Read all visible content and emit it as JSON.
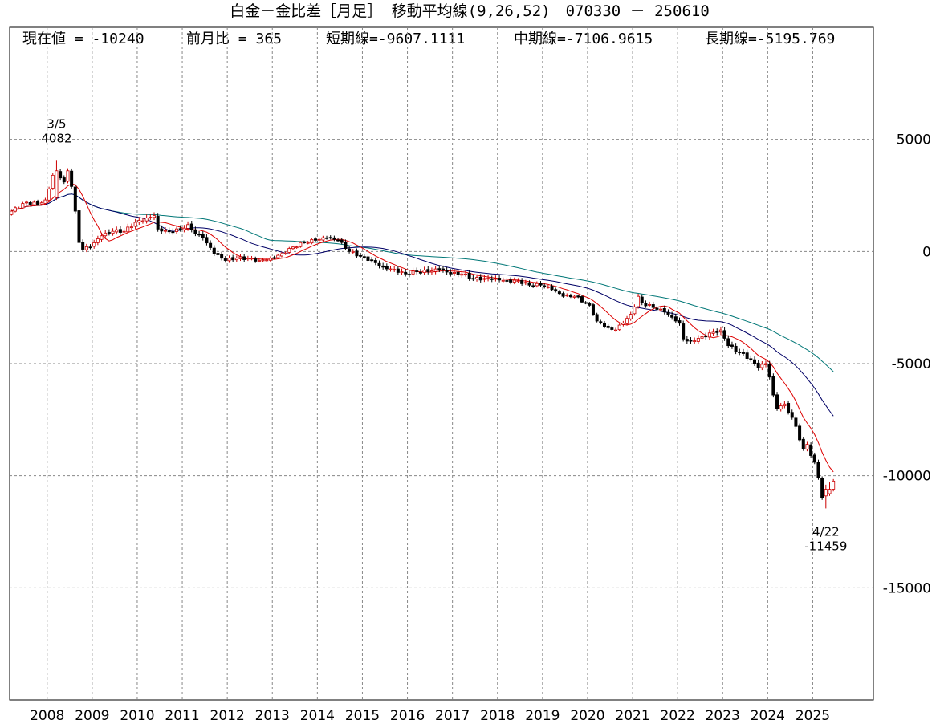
{
  "header": {
    "title": "白金－金比差［月足］ 移動平均線(9,26,52)　070330 － 250610",
    "current_value": "現在値 = -10240",
    "prev_month_change": "前月比 = 365",
    "short_ma": "短期線=-9607.1111",
    "mid_ma": "中期線=-7106.9615",
    "long_ma": "長期線=-5195.769"
  },
  "chart_data": {
    "type": "candlestick",
    "ylim": [
      -20000,
      10000
    ],
    "y_ticks": [
      5000,
      0,
      -5000,
      -10000,
      -15000
    ],
    "y_tick_labels": [
      "5000",
      "0",
      "-5000",
      "-10000",
      "-15000"
    ],
    "x_tick_labels": [
      "2008",
      "2009",
      "2010",
      "2011",
      "2012",
      "2013",
      "2014",
      "2015",
      "2016",
      "2017",
      "2018",
      "2019",
      "2020",
      "2021",
      "2022",
      "2023",
      "2024",
      "2025"
    ],
    "start": "2007-03",
    "grid": true,
    "colors": {
      "up": "#cc0000",
      "down": "#000000",
      "short_ma": "#dd0000",
      "mid_ma": "#000066",
      "long_ma": "#007777",
      "grid": "#888888"
    },
    "close_anchors": [
      [
        "2007-03",
        1800
      ],
      [
        "2007-07",
        2200
      ],
      [
        "2007-10",
        2100
      ],
      [
        "2007-12",
        2300
      ],
      [
        "2008-02",
        3400
      ],
      [
        "2008-03",
        3600
      ],
      [
        "2008-05",
        3100
      ],
      [
        "2008-06",
        3600
      ],
      [
        "2008-07",
        2900
      ],
      [
        "2008-08",
        1800
      ],
      [
        "2008-09",
        400
      ],
      [
        "2008-10",
        100
      ],
      [
        "2008-12",
        200
      ],
      [
        "2009-03",
        700
      ],
      [
        "2009-06",
        900
      ],
      [
        "2009-09",
        900
      ],
      [
        "2009-12",
        1300
      ],
      [
        "2010-03",
        1500
      ],
      [
        "2010-05",
        1600
      ],
      [
        "2010-06",
        1000
      ],
      [
        "2010-09",
        900
      ],
      [
        "2010-12",
        1000
      ],
      [
        "2011-02",
        1200
      ],
      [
        "2011-04",
        800
      ],
      [
        "2011-06",
        600
      ],
      [
        "2011-09",
        -100
      ],
      [
        "2011-12",
        -400
      ],
      [
        "2012-03",
        -300
      ],
      [
        "2012-06",
        -300
      ],
      [
        "2012-09",
        -400
      ],
      [
        "2012-12",
        -300
      ],
      [
        "2013-03",
        -100
      ],
      [
        "2013-06",
        200
      ],
      [
        "2013-09",
        400
      ],
      [
        "2013-12",
        500
      ],
      [
        "2014-03",
        600
      ],
      [
        "2014-06",
        500
      ],
      [
        "2014-09",
        0
      ],
      [
        "2014-12",
        -200
      ],
      [
        "2015-03",
        -400
      ],
      [
        "2015-06",
        -700
      ],
      [
        "2015-09",
        -800
      ],
      [
        "2015-12",
        -1000
      ],
      [
        "2016-03",
        -900
      ],
      [
        "2016-06",
        -900
      ],
      [
        "2016-09",
        -800
      ],
      [
        "2016-12",
        -1000
      ],
      [
        "2017-03",
        -1000
      ],
      [
        "2017-06",
        -1200
      ],
      [
        "2017-09",
        -1200
      ],
      [
        "2017-12",
        -1200
      ],
      [
        "2018-03",
        -1300
      ],
      [
        "2018-06",
        -1300
      ],
      [
        "2018-09",
        -1500
      ],
      [
        "2018-12",
        -1500
      ],
      [
        "2019-03",
        -1700
      ],
      [
        "2019-06",
        -2000
      ],
      [
        "2019-09",
        -2000
      ],
      [
        "2019-12",
        -2300
      ],
      [
        "2020-01",
        -2400
      ],
      [
        "2020-03",
        -3100
      ],
      [
        "2020-06",
        -3400
      ],
      [
        "2020-08",
        -3500
      ],
      [
        "2020-10",
        -3200
      ],
      [
        "2020-12",
        -2800
      ],
      [
        "2021-02",
        -2000
      ],
      [
        "2021-03",
        -2300
      ],
      [
        "2021-06",
        -2500
      ],
      [
        "2021-09",
        -2700
      ],
      [
        "2021-12",
        -3100
      ],
      [
        "2022-01",
        -3200
      ],
      [
        "2022-02",
        -3900
      ],
      [
        "2022-04",
        -4000
      ],
      [
        "2022-07",
        -3800
      ],
      [
        "2022-10",
        -3600
      ],
      [
        "2022-12",
        -3500
      ],
      [
        "2023-02",
        -4200
      ],
      [
        "2023-05",
        -4500
      ],
      [
        "2023-08",
        -4800
      ],
      [
        "2023-10",
        -5200
      ],
      [
        "2023-12",
        -5000
      ],
      [
        "2024-01",
        -5600
      ],
      [
        "2024-02",
        -6400
      ],
      [
        "2024-03",
        -7000
      ],
      [
        "2024-05",
        -6800
      ],
      [
        "2024-07",
        -7400
      ],
      [
        "2024-08",
        -7800
      ],
      [
        "2024-09",
        -8400
      ],
      [
        "2024-10",
        -8800
      ],
      [
        "2024-11",
        -8600
      ],
      [
        "2024-12",
        -9100
      ],
      [
        "2025-01",
        -9400
      ],
      [
        "2025-02",
        -10100
      ],
      [
        "2025-03",
        -11000
      ],
      [
        "2025-04",
        -10605
      ],
      [
        "2025-05",
        -10605
      ],
      [
        "2025-06",
        -10240
      ]
    ],
    "overrides": {
      "2008-03": {
        "o": 2400,
        "h": 4082,
        "l": 2300,
        "c": 3600
      },
      "2025-04": {
        "o": -10900,
        "h": -10400,
        "l": -11459,
        "c": -10605
      },
      "2025-05": {
        "o": -10800,
        "h": -10300,
        "l": -10900,
        "c": -10605
      },
      "2025-06": {
        "o": -10600,
        "h": -10150,
        "l": -10700,
        "c": -10240
      }
    },
    "annotations": [
      {
        "date": "2008-03",
        "value": 4082,
        "label_date": "3/5",
        "label_value": "4082",
        "pos": "above"
      },
      {
        "date": "2025-04",
        "value": -11459,
        "label_date": "4/22",
        "label_value": "-11459",
        "pos": "below"
      }
    ]
  }
}
